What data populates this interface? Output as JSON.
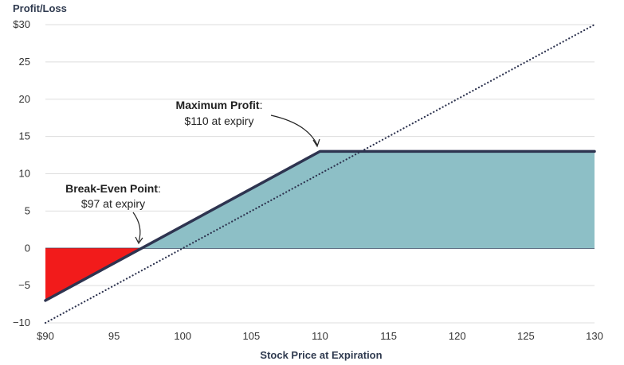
{
  "chart_data": {
    "type": "line",
    "ylabel": "Profit/Loss",
    "xlabel": "Stock Price at Expiration",
    "xlim": [
      90,
      130
    ],
    "ylim": [
      -10,
      30
    ],
    "x_ticks": [
      {
        "value": 90,
        "label": "$90"
      },
      {
        "value": 95,
        "label": "95"
      },
      {
        "value": 100,
        "label": "100"
      },
      {
        "value": 105,
        "label": "105"
      },
      {
        "value": 110,
        "label": "110"
      },
      {
        "value": 115,
        "label": "115"
      },
      {
        "value": 120,
        "label": "120"
      },
      {
        "value": 125,
        "label": "125"
      },
      {
        "value": 130,
        "label": "130"
      }
    ],
    "y_ticks": [
      {
        "value": -10,
        "label": "−10"
      },
      {
        "value": -5,
        "label": "−5"
      },
      {
        "value": 0,
        "label": "0"
      },
      {
        "value": 5,
        "label": "5"
      },
      {
        "value": 10,
        "label": "10"
      },
      {
        "value": 15,
        "label": "15"
      },
      {
        "value": 20,
        "label": "20"
      },
      {
        "value": 25,
        "label": "25"
      },
      {
        "value": 30,
        "label": "$30"
      }
    ],
    "grid": true,
    "series": [
      {
        "style": "solid",
        "color": "#2e3450",
        "points": [
          [
            90,
            -7
          ],
          [
            110,
            13
          ],
          [
            130,
            13
          ]
        ]
      },
      {
        "style": "dotted",
        "color": "#2e3450",
        "points": [
          [
            90,
            -10
          ],
          [
            130,
            30
          ]
        ]
      }
    ],
    "fills": {
      "loss_color": "#f21b1b",
      "profit_color": "#8dbfc6"
    },
    "annotations": [
      {
        "title": "Maximum Profit",
        "suffix": ":",
        "text": "$110 at expiry",
        "target": [
          110,
          13
        ]
      },
      {
        "title": "Break-Even Point",
        "suffix": ":",
        "text": "$97 at expiry",
        "target": [
          97,
          0
        ]
      }
    ]
  }
}
